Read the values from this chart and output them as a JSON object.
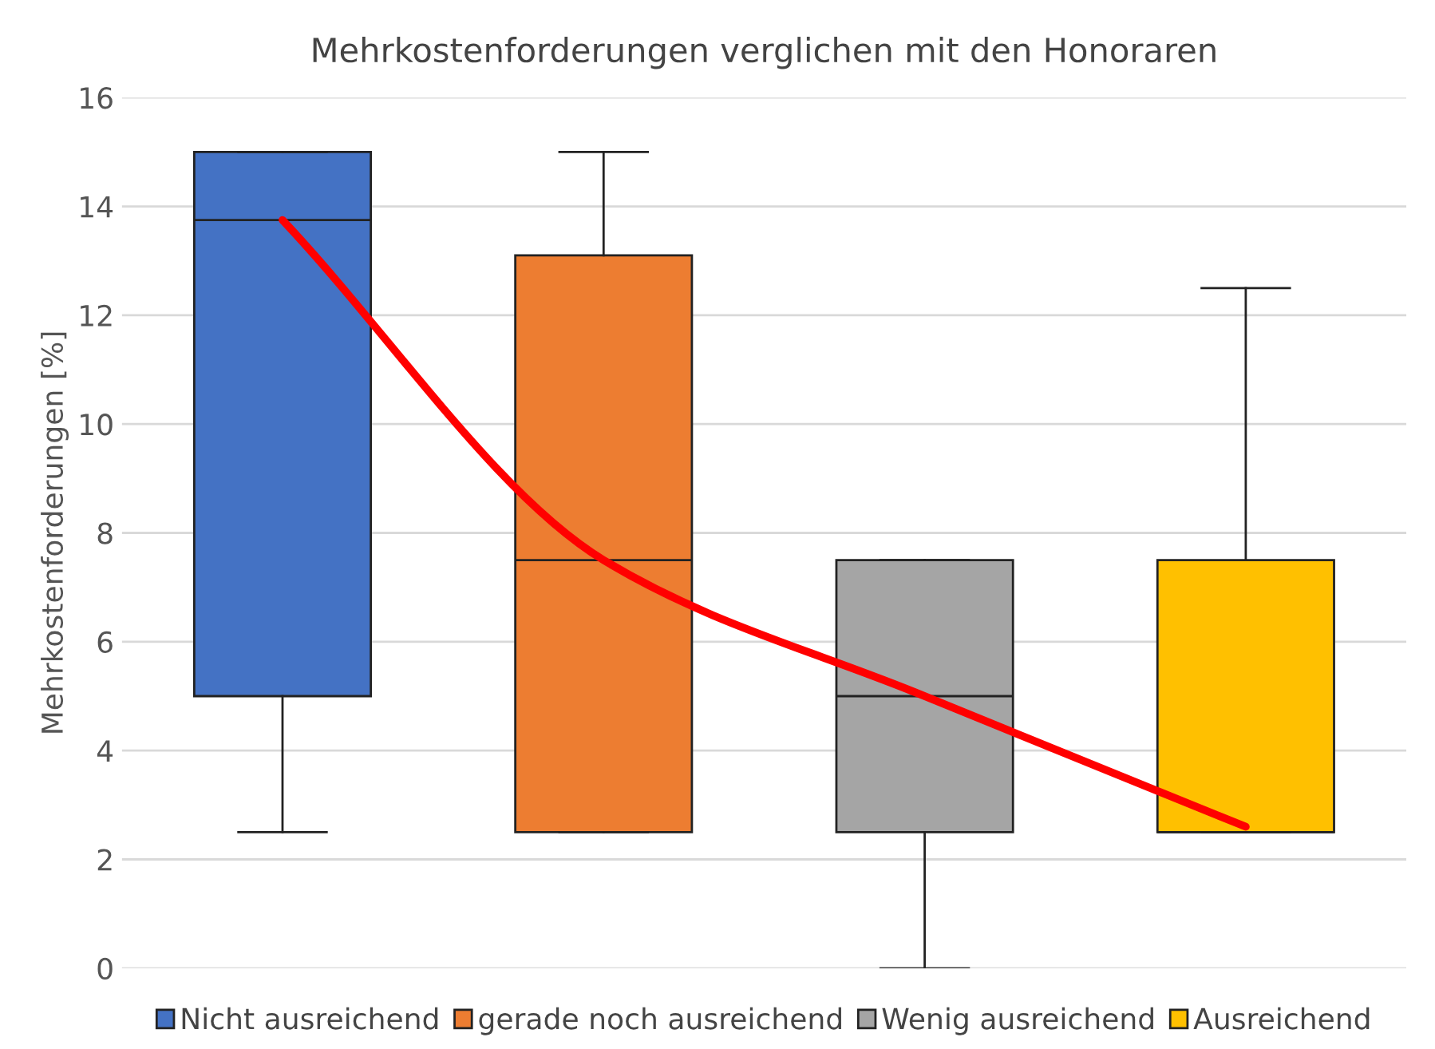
{
  "chart_data": {
    "type": "box",
    "title": "Mehrkostenforderungen verglichen mit den Honoraren",
    "ylabel": "Mehrkostenforderungen [%]",
    "categories": [
      null,
      null,
      null,
      null
    ],
    "series": [
      {
        "name": "Nicht ausreichend",
        "color": "#4472c4",
        "boxes": [
          {
            "low": 2.5,
            "q1": 5.0,
            "median": 13.75,
            "q3": 15.0,
            "high": 15.0
          },
          null,
          null,
          null
        ]
      },
      {
        "name": "gerade noch ausreichend",
        "color": "#ed7d31",
        "boxes": [
          null,
          {
            "low": 2.5,
            "q1": 2.5,
            "median": 7.5,
            "q3": 13.1,
            "high": 15.0
          },
          null,
          null
        ]
      },
      {
        "name": "Wenig ausreichend",
        "color": "#a5a5a5",
        "boxes": [
          null,
          null,
          {
            "low": 0.0,
            "q1": 2.5,
            "median": 5.0,
            "q3": 7.5,
            "high": 7.5
          },
          null
        ]
      },
      {
        "name": "Ausreichend",
        "color": "#ffc000",
        "boxes": [
          null,
          null,
          null,
          {
            "low": 2.5,
            "q1": 2.5,
            "median": 2.5,
            "q3": 7.5,
            "high": 12.5
          }
        ]
      },
      {
        "type": "line",
        "color": "#ff0000",
        "values": [
          13.75,
          7.5,
          5.0,
          2.6
        ]
      }
    ],
    "ylim": [
      0,
      16
    ],
    "yticks": [
      0,
      2,
      4,
      6,
      8,
      10,
      12,
      14,
      16
    ],
    "grid": "y",
    "legend": "bottom"
  }
}
